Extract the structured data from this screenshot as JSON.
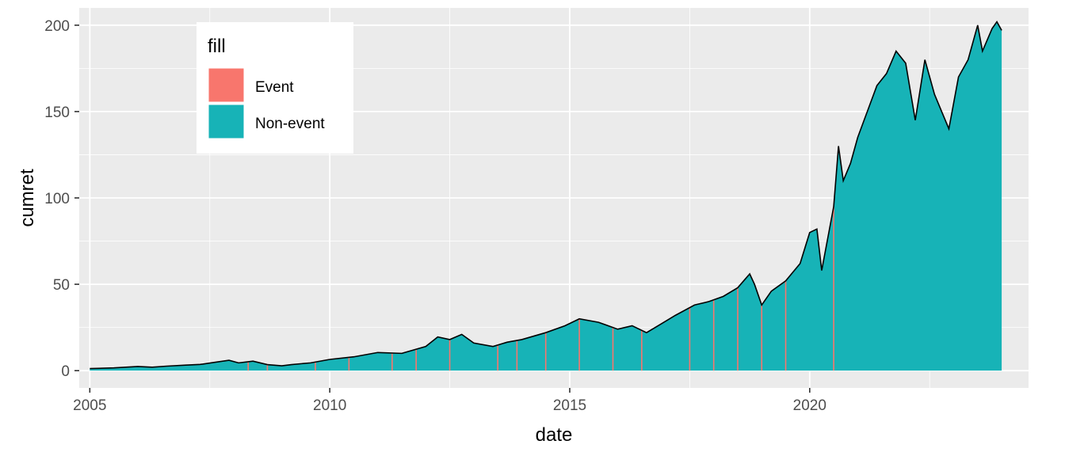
{
  "chart_data": {
    "type": "area",
    "xlabel": "date",
    "ylabel": "cumret",
    "xlim": [
      2004.78,
      2024.56
    ],
    "ylim": [
      -10,
      210
    ],
    "x_ticks": [
      2005,
      2010,
      2015,
      2020
    ],
    "x_tick_labels": [
      "2005",
      "2010",
      "2015",
      "2020"
    ],
    "y_ticks": [
      0,
      50,
      100,
      150,
      200
    ],
    "y_tick_labels": [
      "0",
      "50",
      "100",
      "150",
      "200"
    ],
    "grid": true,
    "legend": {
      "title": "fill",
      "placement": "top-left",
      "entries": [
        {
          "label": "Event",
          "color": "#F8766D"
        },
        {
          "label": "Non-event",
          "color": "#17B3B7"
        }
      ]
    },
    "series": [
      {
        "fill": "Non-event",
        "color": "#17B3B7",
        "x": [
          2005.0,
          2005.5,
          2006.0,
          2006.3,
          2006.6,
          2007.0,
          2007.3,
          2007.6,
          2007.9,
          2008.1,
          2008.4,
          2008.7,
          2009.0,
          2009.2,
          2009.6,
          2010.0,
          2010.5,
          2011.0,
          2011.5,
          2012.0,
          2012.25,
          2012.5,
          2012.75,
          2013.0,
          2013.4,
          2013.7,
          2014.0,
          2014.5,
          2014.9,
          2015.2,
          2015.6,
          2016.0,
          2016.3,
          2016.6,
          2016.9,
          2017.2,
          2017.6,
          2017.9,
          2018.2,
          2018.5,
          2018.75,
          2018.85,
          2019.0,
          2019.2,
          2019.5,
          2019.8,
          2020.0,
          2020.15,
          2020.25,
          2020.5,
          2020.6,
          2020.7,
          2020.85,
          2021.0,
          2021.2,
          2021.4,
          2021.6,
          2021.8,
          2022.0,
          2022.2,
          2022.4,
          2022.6,
          2022.75,
          2022.9,
          2023.1,
          2023.3,
          2023.5,
          2023.6,
          2023.8,
          2023.9,
          2024.0
        ],
        "y": [
          1.2,
          1.6,
          2.4,
          2.0,
          2.6,
          3.2,
          3.6,
          4.8,
          6.0,
          4.5,
          5.5,
          3.5,
          2.8,
          3.5,
          4.5,
          6.5,
          8.0,
          10.5,
          10.0,
          14.0,
          19.5,
          18.0,
          21.0,
          16.0,
          14.0,
          16.5,
          18.0,
          22.0,
          26.0,
          30.0,
          28.0,
          24.0,
          26.0,
          22.0,
          27.0,
          32.0,
          38.0,
          40.0,
          43.0,
          48.0,
          56.0,
          50.0,
          38.0,
          46.0,
          52.0,
          62.0,
          80.0,
          82.0,
          58.0,
          95.0,
          130.0,
          110.0,
          120.0,
          135.0,
          150.0,
          165.0,
          172.0,
          185.0,
          178.0,
          145.0,
          180.0,
          160.0,
          150.0,
          140.0,
          170.0,
          180.0,
          200.0,
          185.0,
          198.0,
          202.0,
          197.0
        ]
      },
      {
        "fill": "Event",
        "color": "#F8766D",
        "x": [
          2008.3,
          2008.7,
          2009.7,
          2010.4,
          2011.3,
          2011.8,
          2012.5,
          2013.5,
          2013.9,
          2014.5,
          2015.2,
          2015.9,
          2016.5,
          2017.5,
          2018.0,
          2018.5,
          2019.0,
          2019.5,
          2020.5
        ]
      }
    ]
  }
}
